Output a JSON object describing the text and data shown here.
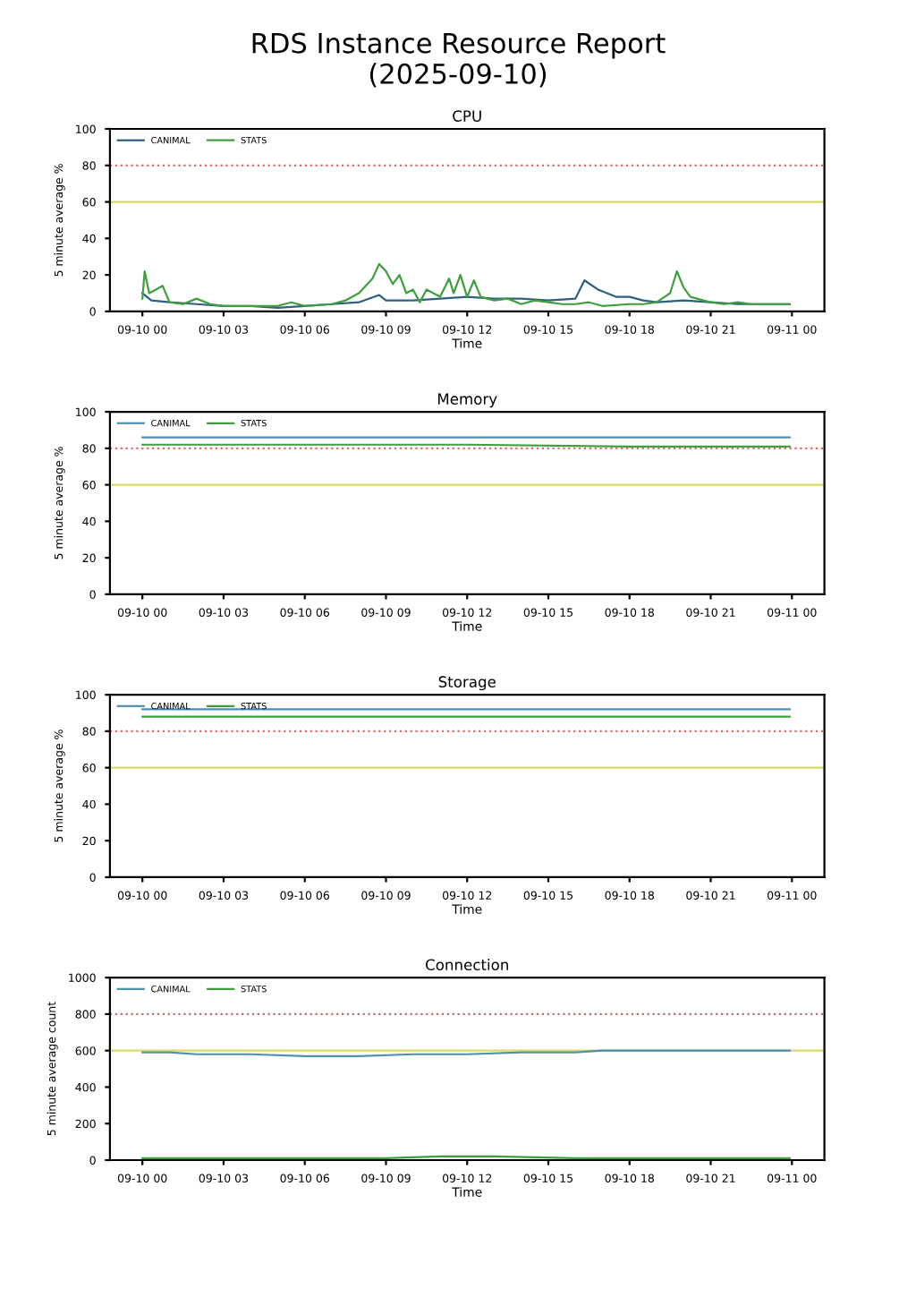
{
  "chart_data": [
    {
      "type": "line",
      "title": "CPU",
      "xlabel": "Time",
      "ylabel": "5 minute average %",
      "annotations": [
        "RDS Instance Resource Report\n(2025-09-10)"
      ],
      "xlim": [
        "2025-09-09T22:48",
        "2025-09-11T01:12"
      ],
      "xticks": [
        {
          "value": "2025-09-10T00:00",
          "label": "09-10 00"
        },
        {
          "value": "2025-09-10T03:00",
          "label": "09-10 03"
        },
        {
          "value": "2025-09-10T06:00",
          "label": "09-10 06"
        },
        {
          "value": "2025-09-10T09:00",
          "label": "09-10 09"
        },
        {
          "value": "2025-09-10T12:00",
          "label": "09-10 12"
        },
        {
          "value": "2025-09-10T15:00",
          "label": "09-10 15"
        },
        {
          "value": "2025-09-10T18:00",
          "label": "09-10 18"
        },
        {
          "value": "2025-09-10T21:00",
          "label": "09-10 21"
        },
        {
          "value": "2025-09-11T00:00",
          "label": "09-11 00"
        }
      ],
      "ylim": [
        0,
        100
      ],
      "yticks": [
        0,
        20,
        40,
        60,
        80,
        100
      ],
      "legend": "top left",
      "grid": false,
      "marker": "none",
      "line_style": "solid",
      "ref_lines": [
        {
          "axis": "y",
          "value": 80,
          "color": "#e06666",
          "line_style": "dotted"
        },
        {
          "axis": "y",
          "value": 60,
          "color": "#d9d96a",
          "line_style": "solid"
        }
      ],
      "series": [
        {
          "name": "CANIMAL",
          "color": "#2f5f7f",
          "x": [
            "2025-09-10T00:00",
            "2025-09-10T00:20",
            "2025-09-10T01:00",
            "2025-09-10T02:00",
            "2025-09-10T03:00",
            "2025-09-10T04:00",
            "2025-09-10T05:00",
            "2025-09-10T06:00",
            "2025-09-10T07:00",
            "2025-09-10T08:00",
            "2025-09-10T08:45",
            "2025-09-10T09:00",
            "2025-09-10T10:00",
            "2025-09-10T11:00",
            "2025-09-10T12:00",
            "2025-09-10T13:00",
            "2025-09-10T14:00",
            "2025-09-10T15:00",
            "2025-09-10T16:00",
            "2025-09-10T16:20",
            "2025-09-10T16:50",
            "2025-09-10T17:30",
            "2025-09-10T18:00",
            "2025-09-10T18:30",
            "2025-09-10T19:00",
            "2025-09-10T20:00",
            "2025-09-10T21:00",
            "2025-09-10T22:00",
            "2025-09-10T23:00",
            "2025-09-10T23:55"
          ],
          "values": [
            10,
            6,
            5,
            4,
            3,
            3,
            2,
            3,
            4,
            5,
            9,
            6,
            6,
            7,
            8,
            7,
            7,
            6,
            7,
            17,
            12,
            8,
            8,
            6,
            5,
            6,
            5,
            4,
            4,
            4
          ]
        },
        {
          "name": "STATS",
          "color": "#3f9f3f",
          "x": [
            "2025-09-10T00:00",
            "2025-09-10T00:05",
            "2025-09-10T00:15",
            "2025-09-10T00:30",
            "2025-09-10T00:45",
            "2025-09-10T01:00",
            "2025-09-10T01:30",
            "2025-09-10T02:00",
            "2025-09-10T02:30",
            "2025-09-10T03:00",
            "2025-09-10T04:00",
            "2025-09-10T05:00",
            "2025-09-10T05:30",
            "2025-09-10T06:00",
            "2025-09-10T07:00",
            "2025-09-10T07:30",
            "2025-09-10T08:00",
            "2025-09-10T08:30",
            "2025-09-10T08:45",
            "2025-09-10T09:00",
            "2025-09-10T09:15",
            "2025-09-10T09:30",
            "2025-09-10T09:45",
            "2025-09-10T10:00",
            "2025-09-10T10:15",
            "2025-09-10T10:30",
            "2025-09-10T11:00",
            "2025-09-10T11:20",
            "2025-09-10T11:30",
            "2025-09-10T11:45",
            "2025-09-10T12:00",
            "2025-09-10T12:15",
            "2025-09-10T12:30",
            "2025-09-10T13:00",
            "2025-09-10T13:30",
            "2025-09-10T14:00",
            "2025-09-10T14:30",
            "2025-09-10T15:00",
            "2025-09-10T15:30",
            "2025-09-10T16:00",
            "2025-09-10T16:30",
            "2025-09-10T17:00",
            "2025-09-10T18:00",
            "2025-09-10T18:30",
            "2025-09-10T19:00",
            "2025-09-10T19:30",
            "2025-09-10T19:45",
            "2025-09-10T20:00",
            "2025-09-10T20:15",
            "2025-09-10T20:30",
            "2025-09-10T21:00",
            "2025-09-10T21:30",
            "2025-09-10T22:00",
            "2025-09-10T22:30",
            "2025-09-10T23:00",
            "2025-09-10T23:55"
          ],
          "values": [
            7,
            22,
            10,
            12,
            14,
            5,
            4,
            7,
            4,
            3,
            3,
            3,
            5,
            3,
            4,
            6,
            10,
            18,
            26,
            22,
            15,
            20,
            10,
            12,
            5,
            12,
            8,
            18,
            10,
            20,
            8,
            17,
            8,
            6,
            7,
            4,
            6,
            5,
            4,
            4,
            5,
            3,
            4,
            4,
            5,
            10,
            22,
            13,
            8,
            7,
            5,
            4,
            5,
            4,
            4,
            4
          ]
        }
      ]
    },
    {
      "type": "line",
      "title": "Memory",
      "xlabel": "Time",
      "ylabel": "5 minute average %",
      "xlim": [
        "2025-09-09T22:48",
        "2025-09-11T01:12"
      ],
      "xticks": [
        {
          "value": "2025-09-10T00:00",
          "label": "09-10 00"
        },
        {
          "value": "2025-09-10T03:00",
          "label": "09-10 03"
        },
        {
          "value": "2025-09-10T06:00",
          "label": "09-10 06"
        },
        {
          "value": "2025-09-10T09:00",
          "label": "09-10 09"
        },
        {
          "value": "2025-09-10T12:00",
          "label": "09-10 12"
        },
        {
          "value": "2025-09-10T15:00",
          "label": "09-10 15"
        },
        {
          "value": "2025-09-10T18:00",
          "label": "09-10 18"
        },
        {
          "value": "2025-09-10T21:00",
          "label": "09-10 21"
        },
        {
          "value": "2025-09-11T00:00",
          "label": "09-11 00"
        }
      ],
      "ylim": [
        0,
        100
      ],
      "yticks": [
        0,
        20,
        40,
        60,
        80,
        100
      ],
      "legend": "top left",
      "grid": false,
      "marker": "none",
      "line_style": "solid",
      "ref_lines": [
        {
          "axis": "y",
          "value": 80,
          "color": "#e06666",
          "line_style": "dotted"
        },
        {
          "axis": "y",
          "value": 60,
          "color": "#d9d96a",
          "line_style": "solid"
        }
      ],
      "series": [
        {
          "name": "CANIMAL",
          "color": "#4f8fb0",
          "x": [
            "2025-09-10T00:00",
            "2025-09-10T06:00",
            "2025-09-10T12:00",
            "2025-09-10T18:00",
            "2025-09-10T23:55"
          ],
          "values": [
            86,
            86,
            86,
            86,
            86
          ]
        },
        {
          "name": "STATS",
          "color": "#3f9f3f",
          "x": [
            "2025-09-10T00:00",
            "2025-09-10T06:00",
            "2025-09-10T12:00",
            "2025-09-10T18:00",
            "2025-09-10T23:55"
          ],
          "values": [
            82,
            82,
            82,
            81,
            81
          ]
        }
      ]
    },
    {
      "type": "line",
      "title": "Storage",
      "xlabel": "Time",
      "ylabel": "5 minute average %",
      "xlim": [
        "2025-09-09T22:48",
        "2025-09-11T01:12"
      ],
      "xticks": [
        {
          "value": "2025-09-10T00:00",
          "label": "09-10 00"
        },
        {
          "value": "2025-09-10T03:00",
          "label": "09-10 03"
        },
        {
          "value": "2025-09-10T06:00",
          "label": "09-10 06"
        },
        {
          "value": "2025-09-10T09:00",
          "label": "09-10 09"
        },
        {
          "value": "2025-09-10T12:00",
          "label": "09-10 12"
        },
        {
          "value": "2025-09-10T15:00",
          "label": "09-10 15"
        },
        {
          "value": "2025-09-10T18:00",
          "label": "09-10 18"
        },
        {
          "value": "2025-09-10T21:00",
          "label": "09-10 21"
        },
        {
          "value": "2025-09-11T00:00",
          "label": "09-11 00"
        }
      ],
      "ylim": [
        0,
        100
      ],
      "yticks": [
        0,
        20,
        40,
        60,
        80,
        100
      ],
      "legend": "top left",
      "grid": false,
      "marker": "none",
      "line_style": "solid",
      "ref_lines": [
        {
          "axis": "y",
          "value": 80,
          "color": "#e06666",
          "line_style": "dotted"
        },
        {
          "axis": "y",
          "value": 60,
          "color": "#d9d96a",
          "line_style": "solid"
        }
      ],
      "series": [
        {
          "name": "CANIMAL",
          "color": "#4f8fb0",
          "x": [
            "2025-09-10T00:00",
            "2025-09-10T06:00",
            "2025-09-10T12:00",
            "2025-09-10T18:00",
            "2025-09-10T23:55"
          ],
          "values": [
            92,
            92,
            92,
            92,
            92
          ]
        },
        {
          "name": "STATS",
          "color": "#3f9f3f",
          "x": [
            "2025-09-10T00:00",
            "2025-09-10T06:00",
            "2025-09-10T12:00",
            "2025-09-10T18:00",
            "2025-09-10T23:55"
          ],
          "values": [
            88,
            88,
            88,
            88,
            88
          ]
        }
      ]
    },
    {
      "type": "line",
      "title": "Connection",
      "xlabel": "Time",
      "ylabel": "5 minute average count",
      "xlim": [
        "2025-09-09T22:48",
        "2025-09-11T01:12"
      ],
      "xticks": [
        {
          "value": "2025-09-10T00:00",
          "label": "09-10 00"
        },
        {
          "value": "2025-09-10T03:00",
          "label": "09-10 03"
        },
        {
          "value": "2025-09-10T06:00",
          "label": "09-10 06"
        },
        {
          "value": "2025-09-10T09:00",
          "label": "09-10 09"
        },
        {
          "value": "2025-09-10T12:00",
          "label": "09-10 12"
        },
        {
          "value": "2025-09-10T15:00",
          "label": "09-10 15"
        },
        {
          "value": "2025-09-10T18:00",
          "label": "09-10 18"
        },
        {
          "value": "2025-09-10T21:00",
          "label": "09-10 21"
        },
        {
          "value": "2025-09-11T00:00",
          "label": "09-11 00"
        }
      ],
      "ylim": [
        0,
        1000
      ],
      "yticks": [
        0,
        200,
        400,
        600,
        800,
        1000
      ],
      "legend": "top left",
      "grid": false,
      "marker": "none",
      "line_style": "solid",
      "ref_lines": [
        {
          "axis": "y",
          "value": 800,
          "color": "#b07070",
          "line_style": "dotted"
        },
        {
          "axis": "y",
          "value": 600,
          "color": "#d9d96a",
          "line_style": "solid"
        }
      ],
      "series": [
        {
          "name": "CANIMAL",
          "color": "#4f8fb0",
          "x": [
            "2025-09-10T00:00",
            "2025-09-10T01:00",
            "2025-09-10T02:00",
            "2025-09-10T04:00",
            "2025-09-10T06:00",
            "2025-09-10T08:00",
            "2025-09-10T10:00",
            "2025-09-10T12:00",
            "2025-09-10T14:00",
            "2025-09-10T16:00",
            "2025-09-10T17:00",
            "2025-09-10T18:00",
            "2025-09-10T20:00",
            "2025-09-10T23:55"
          ],
          "values": [
            590,
            590,
            580,
            580,
            570,
            570,
            580,
            580,
            590,
            590,
            600,
            600,
            600,
            600
          ]
        },
        {
          "name": "STATS",
          "color": "#3f9f3f",
          "x": [
            "2025-09-10T00:00",
            "2025-09-10T03:00",
            "2025-09-10T06:00",
            "2025-09-10T09:00",
            "2025-09-10T11:00",
            "2025-09-10T12:00",
            "2025-09-10T13:00",
            "2025-09-10T16:00",
            "2025-09-10T18:00",
            "2025-09-10T21:00",
            "2025-09-10T23:55"
          ],
          "values": [
            10,
            10,
            10,
            10,
            20,
            20,
            20,
            10,
            10,
            10,
            10
          ]
        }
      ]
    }
  ]
}
